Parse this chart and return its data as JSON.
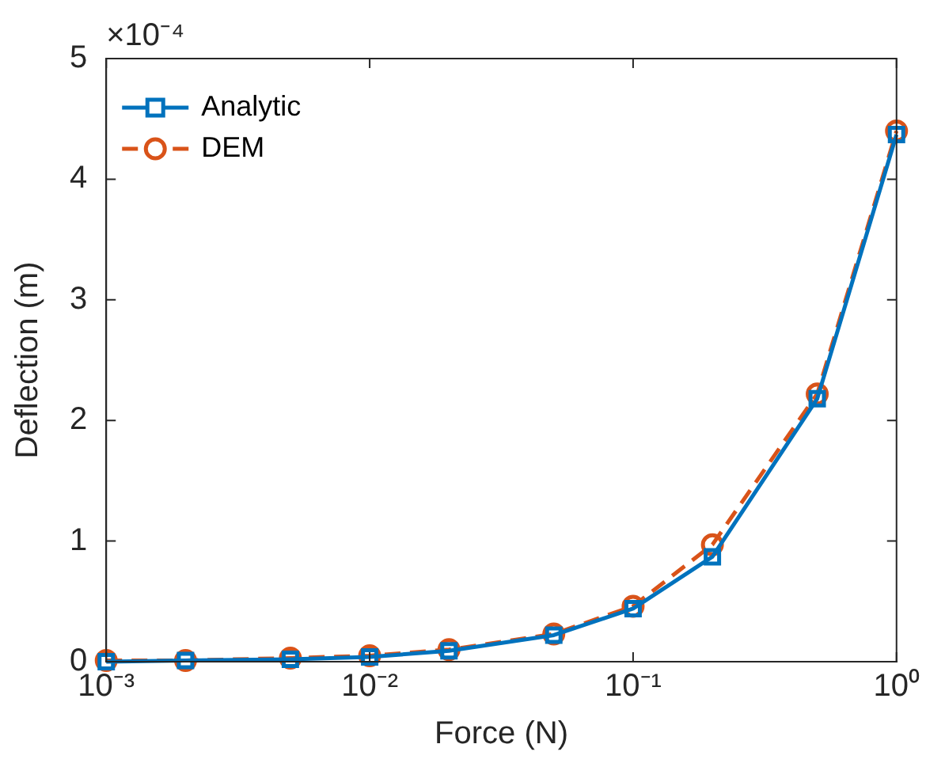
{
  "chart_data": {
    "type": "line",
    "xlabel": "Force (N)",
    "ylabel": "Deflection (m)",
    "log": "x",
    "x": [
      0.001,
      0.002,
      0.005,
      0.01,
      0.02,
      0.05,
      0.1,
      0.2,
      0.5,
      1
    ],
    "series": [
      {
        "name": "Analytic",
        "color": "#0072bd",
        "marker": "square",
        "line_style": "solid",
        "values": [
          0,
          0.01,
          0.02,
          0.04,
          0.09,
          0.22,
          0.44,
          0.87,
          2.18,
          4.37
        ]
      },
      {
        "name": "DEM",
        "color": "#d95319",
        "marker": "circle",
        "line_style": "dashed",
        "values": [
          0.01,
          0.01,
          0.03,
          0.05,
          0.1,
          0.23,
          0.46,
          0.97,
          2.22,
          4.4
        ]
      }
    ],
    "xlim": [
      0.001,
      1
    ],
    "xticks": [
      {
        "value": 0.001,
        "label": "10⁻³"
      },
      {
        "value": 0.01,
        "label": "10⁻²"
      },
      {
        "value": 0.1,
        "label": "10⁻¹"
      },
      {
        "value": 1,
        "label": "10⁰"
      }
    ],
    "ylim": [
      0,
      5
    ],
    "yticks": [
      0,
      1,
      2,
      3,
      4,
      5
    ],
    "annotations": [
      "×10⁻⁴"
    ],
    "grid": false,
    "legend": "top left"
  }
}
